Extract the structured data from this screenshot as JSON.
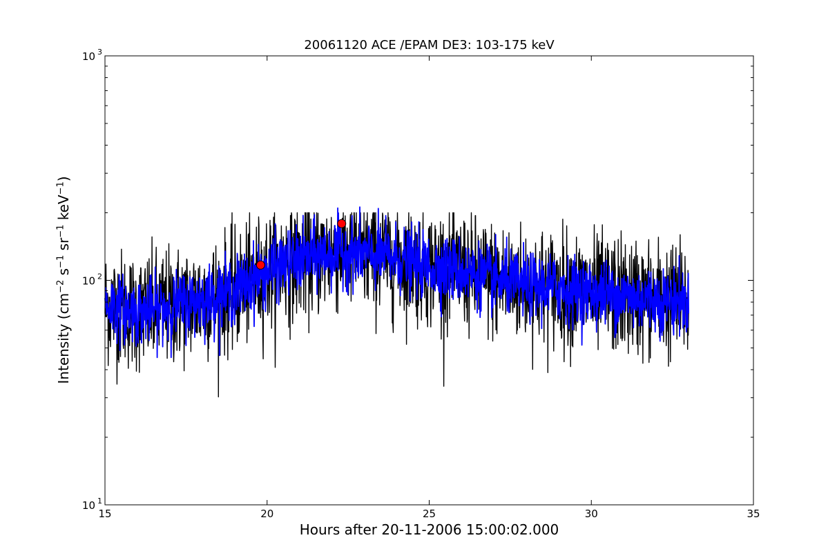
{
  "chart_data": {
    "type": "line",
    "title": "20061120 ACE /EPAM DE3: 103-175 keV",
    "xlabel": "Hours after 20-11-2006 15:00:02.000",
    "ylabel": {
      "prefix": "Intensity (cm",
      "cm_exp": "−2",
      "s_unit": " s",
      "s_exp": "−1",
      "sr_unit": " sr",
      "sr_exp": "−1",
      "kev_unit": " keV",
      "kev_exp": "−1",
      "suffix": ")"
    },
    "xlim": [
      15,
      35
    ],
    "ylim": [
      10,
      1000
    ],
    "yscale": "log",
    "grid": false,
    "x_ticks": [
      "15",
      "20",
      "25",
      "30",
      "35"
    ],
    "x_tick_values": [
      15,
      20,
      25,
      30,
      35
    ],
    "y_ticks": [
      {
        "base": "10",
        "exp": "1",
        "value": 10
      },
      {
        "base": "10",
        "exp": "2",
        "value": 100
      },
      {
        "base": "10",
        "exp": "3",
        "value": 1000
      }
    ],
    "series": [
      {
        "color": "#000000",
        "style": "noisy-line",
        "x_range": [
          15,
          33
        ],
        "envelope": {
          "x": [
            15,
            16,
            17,
            18,
            19,
            19.8,
            20.5,
            21.5,
            22.3,
            23,
            24,
            25,
            26,
            27,
            28,
            29,
            30,
            31,
            32,
            33
          ],
          "y": [
            78,
            72,
            76,
            82,
            90,
            105,
            118,
            128,
            135,
            130,
            125,
            115,
            110,
            100,
            95,
            92,
            88,
            85,
            82,
            80
          ]
        },
        "spread_factor": 1.35,
        "min": 29,
        "max": 200
      },
      {
        "color": "#0000ff",
        "style": "noisy-line",
        "x_range": [
          15,
          33
        ],
        "envelope": {
          "x": [
            15,
            16,
            17,
            18,
            19,
            19.8,
            20.5,
            21.5,
            22.3,
            23,
            24,
            25,
            26,
            27,
            28,
            29,
            30,
            31,
            32,
            33
          ],
          "y": [
            78,
            72,
            76,
            82,
            90,
            105,
            118,
            128,
            135,
            130,
            125,
            115,
            110,
            100,
            95,
            92,
            88,
            85,
            82,
            80
          ]
        },
        "spread_factor": 1.18
      }
    ],
    "markers": [
      {
        "x": 19.8,
        "y": 117,
        "color": "#ff0000",
        "shape": "circle"
      },
      {
        "x": 22.3,
        "y": 179,
        "color": "#ff0000",
        "shape": "circle"
      }
    ]
  }
}
